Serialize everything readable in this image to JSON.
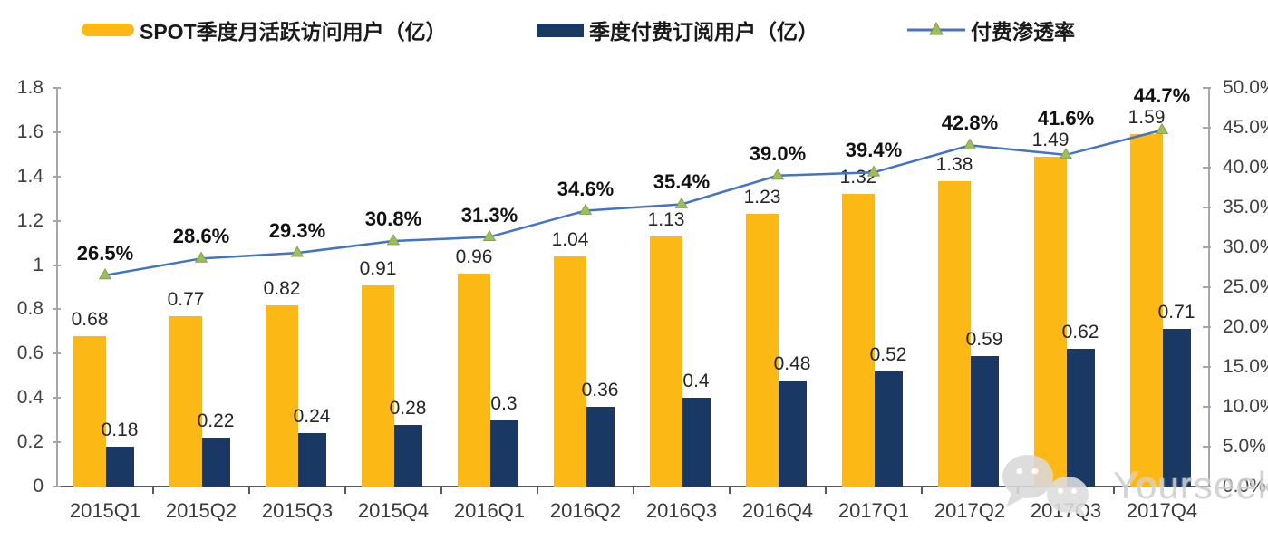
{
  "legend": {
    "items": [
      {
        "label": "SPOT季度月活跃访问用户（亿）",
        "type": "bar",
        "color": "#FCB814"
      },
      {
        "label": "季度付费订阅用户（亿）",
        "type": "bar",
        "color": "#1A3864"
      },
      {
        "label": "付费渗透率",
        "type": "line",
        "line_color": "#4472C4",
        "marker_color": "#9DBF5B"
      }
    ]
  },
  "watermark": {
    "text": "Yourseeker",
    "icon": "wechat-icon"
  },
  "colors": {
    "mau_bar": "#FCB814",
    "subs_bar": "#1A3864",
    "penetration_line": "#4472C4",
    "penetration_marker": "#9DBF5B",
    "axis": "#a6a6a6",
    "bottom_axis": "#595959"
  },
  "chart_data": {
    "type": "bar",
    "subtype": "combo-bar-line",
    "categories": [
      "2015Q1",
      "2015Q2",
      "2015Q3",
      "2015Q4",
      "2016Q1",
      "2016Q2",
      "2016Q3",
      "2016Q4",
      "2017Q1",
      "2017Q2",
      "2017Q3",
      "2017Q4"
    ],
    "series": [
      {
        "name": "SPOT季度月活跃访问用户（亿）",
        "type": "bar",
        "axis": "left",
        "color": "#FCB814",
        "values": [
          0.68,
          0.77,
          0.82,
          0.91,
          0.96,
          1.04,
          1.13,
          1.23,
          1.32,
          1.38,
          1.49,
          1.59
        ],
        "labels": [
          "0.68",
          "0.77",
          "0.82",
          "0.91",
          "0.96",
          "1.04",
          "1.13",
          "1.23",
          "1.32",
          "1.38",
          "1.49",
          "1.59"
        ]
      },
      {
        "name": "季度付费订阅用户（亿）",
        "type": "bar",
        "axis": "left",
        "color": "#1A3864",
        "values": [
          0.18,
          0.22,
          0.24,
          0.28,
          0.3,
          0.36,
          0.4,
          0.48,
          0.52,
          0.59,
          0.62,
          0.71
        ],
        "labels": [
          "0.18",
          "0.22",
          "0.24",
          "0.28",
          "0.3",
          "0.36",
          "0.4",
          "0.48",
          "0.52",
          "0.59",
          "0.62",
          "0.71"
        ]
      },
      {
        "name": "付费渗透率",
        "type": "line",
        "axis": "right",
        "color": "#4472C4",
        "marker": "triangle",
        "marker_color": "#9DBF5B",
        "values": [
          26.5,
          28.6,
          29.3,
          30.8,
          31.3,
          34.6,
          35.4,
          39.0,
          39.4,
          42.8,
          41.6,
          44.7
        ],
        "labels": [
          "26.5%",
          "28.6%",
          "29.3%",
          "30.8%",
          "31.3%",
          "34.6%",
          "35.4%",
          "39.0%",
          "39.4%",
          "42.8%",
          "41.6%",
          "44.7%"
        ]
      }
    ],
    "left_axis": {
      "min": 0,
      "max": 1.8,
      "tick_step": 0.2,
      "tick_labels": [
        "0",
        "0.2",
        "0.4",
        "0.6",
        "0.8",
        "1",
        "1.2",
        "1.4",
        "1.6",
        "1.8"
      ]
    },
    "right_axis": {
      "min": 0,
      "max": 50,
      "tick_step": 5,
      "tick_labels": [
        "0.0%",
        "5.0%",
        "10.0%",
        "15.0%",
        "20.0%",
        "25.0%",
        "30.0%",
        "35.0%",
        "40.0%",
        "45.0%",
        "50.0%"
      ]
    },
    "grid": false,
    "legend_position": "top"
  }
}
